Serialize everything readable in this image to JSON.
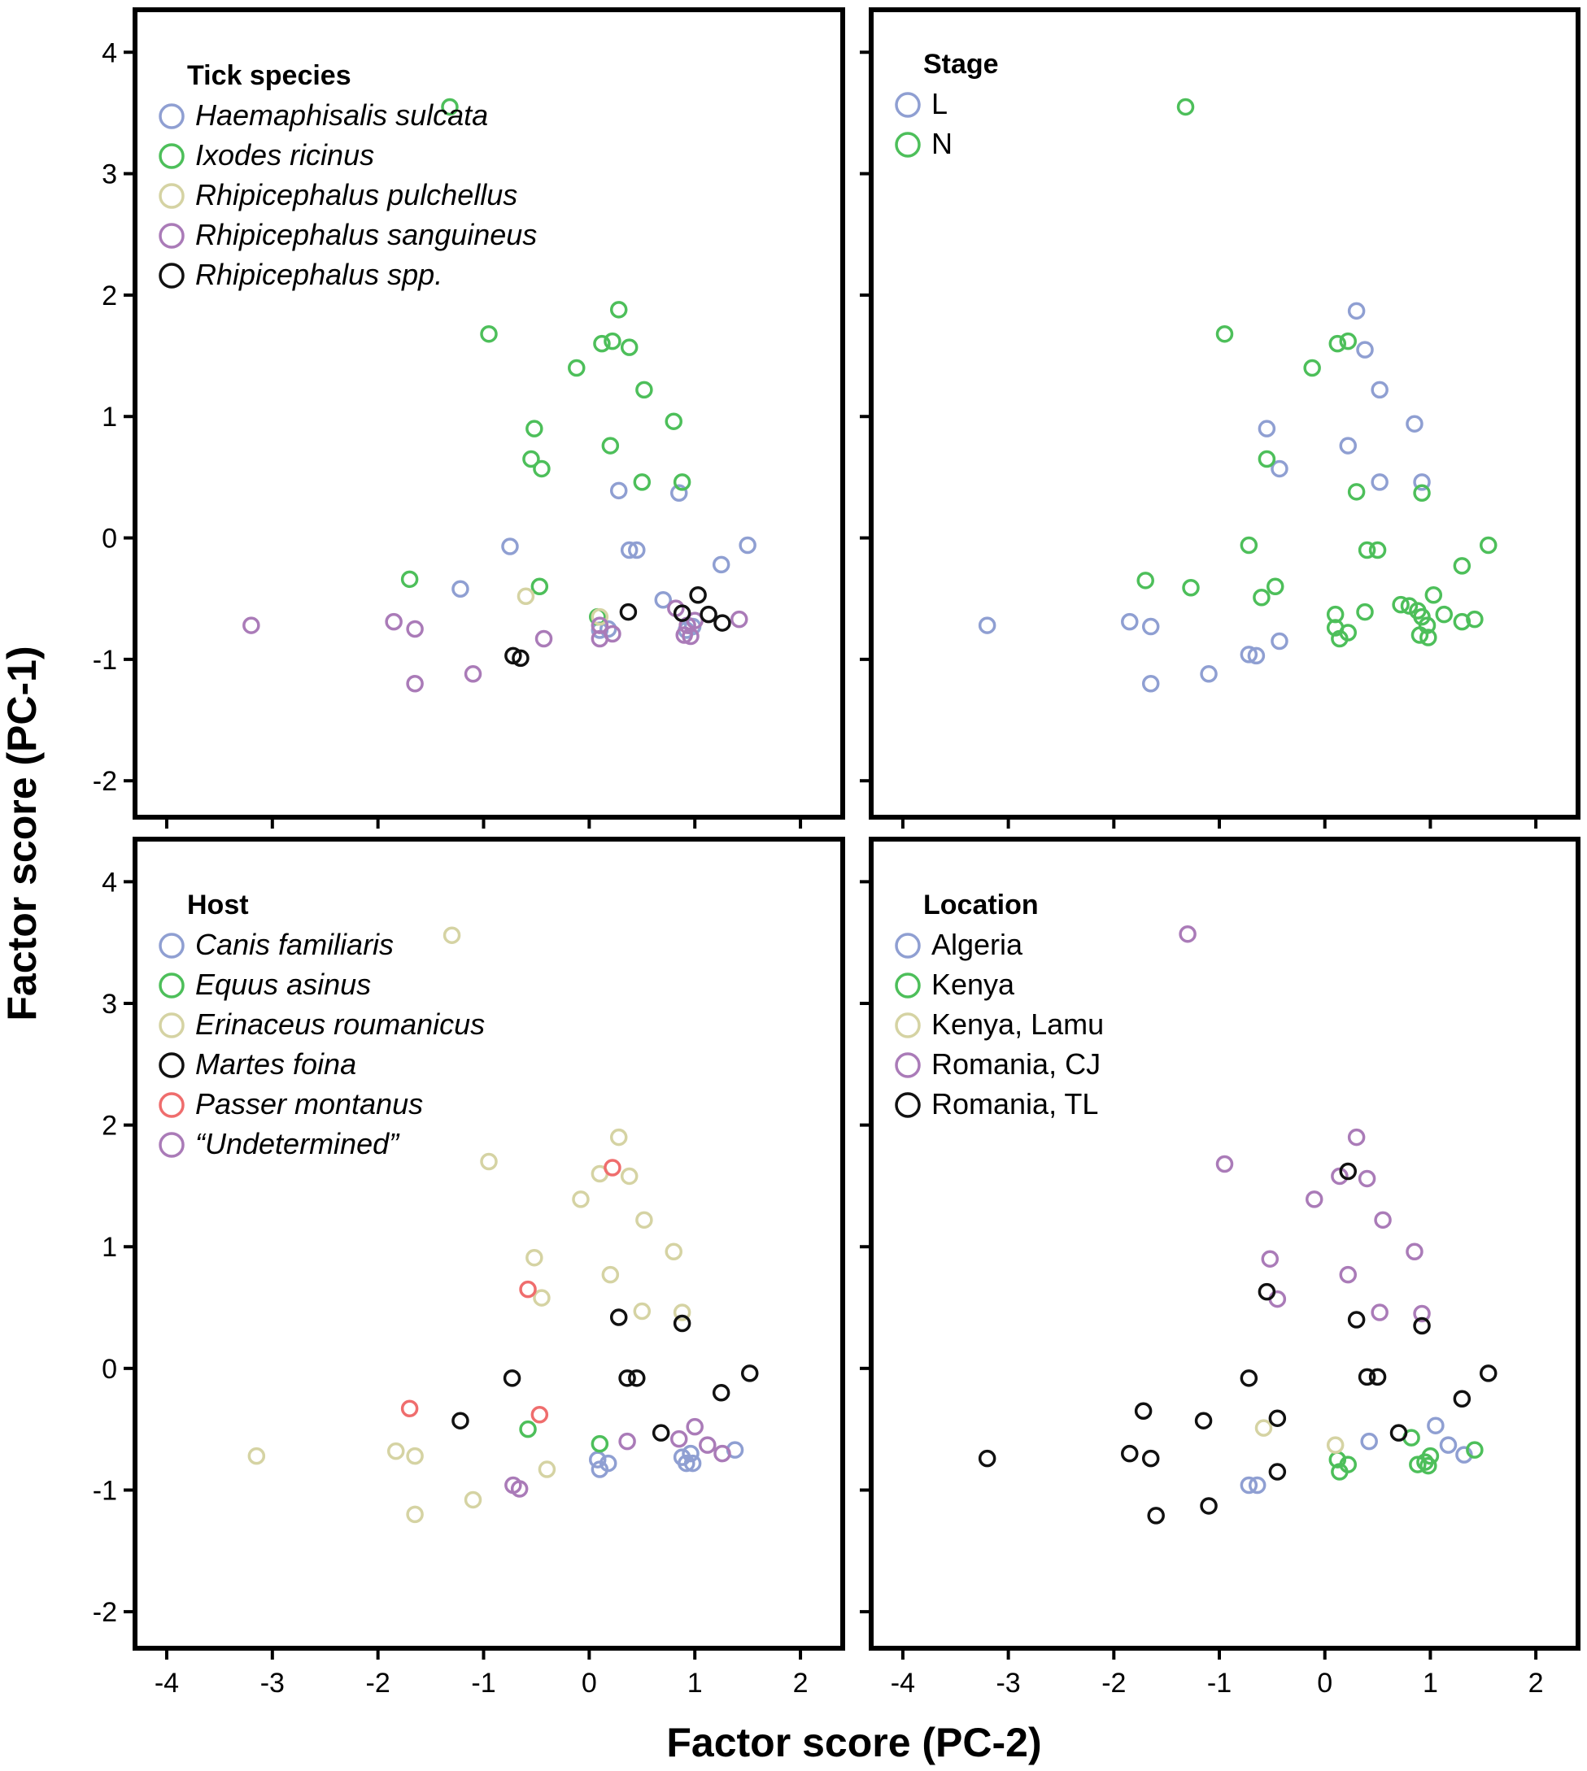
{
  "figure": {
    "xlabel": "Factor score (PC-2)",
    "ylabel": "Factor score (PC-1)"
  },
  "colors": {
    "blue": "#8f9fd2",
    "green": "#4dbf5a",
    "beige": "#d5d3a3",
    "purple": "#aa7bb8",
    "black": "#111111",
    "red": "#ef6d6d"
  },
  "chart_data": [
    {
      "type": "scatter",
      "id": "tick",
      "title": "Tick species",
      "xlim": [
        -4.3,
        2.4
      ],
      "ylim": [
        -2.3,
        4.35
      ],
      "xticks": [
        -4,
        -3,
        -2,
        -1,
        0,
        1,
        2
      ],
      "yticks": [
        4,
        3,
        2,
        1,
        0,
        -1,
        -2
      ],
      "legend_position": "top-left",
      "series": [
        {
          "name": "Haemaphisalis sulcata",
          "color": "blue",
          "italic": true,
          "points": [
            [
              -0.75,
              -0.07
            ],
            [
              -1.22,
              -0.42
            ],
            [
              0.28,
              0.39
            ],
            [
              0.38,
              -0.1
            ],
            [
              0.45,
              -0.1
            ],
            [
              0.85,
              0.37
            ],
            [
              1.25,
              -0.22
            ],
            [
              1.5,
              -0.06
            ],
            [
              0.7,
              -0.51
            ],
            [
              0.1,
              -0.76
            ],
            [
              0.18,
              -0.75
            ],
            [
              0.92,
              -0.76
            ],
            [
              0.98,
              -0.73
            ]
          ]
        },
        {
          "name": "Ixodes ricinus",
          "color": "green",
          "italic": true,
          "points": [
            [
              -1.32,
              3.55
            ],
            [
              -0.95,
              1.68
            ],
            [
              -0.12,
              1.4
            ],
            [
              0.12,
              1.6
            ],
            [
              0.22,
              1.62
            ],
            [
              0.28,
              1.88
            ],
            [
              0.38,
              1.57
            ],
            [
              0.52,
              1.22
            ],
            [
              0.8,
              0.96
            ],
            [
              -0.52,
              0.9
            ],
            [
              -0.55,
              0.65
            ],
            [
              -0.45,
              0.57
            ],
            [
              0.2,
              0.76
            ],
            [
              0.5,
              0.46
            ],
            [
              0.88,
              0.46
            ],
            [
              -1.7,
              -0.34
            ],
            [
              -0.47,
              -0.4
            ],
            [
              0.08,
              -0.65
            ]
          ]
        },
        {
          "name": "Rhipicephalus pulchellus",
          "color": "beige",
          "italic": true,
          "points": [
            [
              -0.6,
              -0.48
            ],
            [
              0.1,
              -0.65
            ]
          ]
        },
        {
          "name": "Rhipicephalus sanguineus",
          "color": "purple",
          "italic": true,
          "points": [
            [
              -3.2,
              -0.72
            ],
            [
              -1.85,
              -0.69
            ],
            [
              -1.65,
              -0.75
            ],
            [
              -1.65,
              -1.2
            ],
            [
              -1.1,
              -1.12
            ],
            [
              -0.43,
              -0.83
            ],
            [
              0.1,
              -0.72
            ],
            [
              0.1,
              -0.83
            ],
            [
              0.22,
              -0.79
            ],
            [
              0.82,
              -0.58
            ],
            [
              0.9,
              -0.8
            ],
            [
              0.96,
              -0.81
            ],
            [
              0.93,
              -0.72
            ],
            [
              1.0,
              -0.68
            ],
            [
              1.42,
              -0.67
            ]
          ]
        },
        {
          "name": "Rhipicephalus spp.",
          "color": "black",
          "italic": true,
          "points": [
            [
              -0.72,
              -0.97
            ],
            [
              -0.65,
              -0.99
            ],
            [
              0.37,
              -0.61
            ],
            [
              0.88,
              -0.62
            ],
            [
              1.03,
              -0.47
            ],
            [
              1.13,
              -0.63
            ],
            [
              1.26,
              -0.7
            ]
          ]
        }
      ]
    },
    {
      "type": "scatter",
      "id": "stage",
      "title": "Stage",
      "xlim": [
        -4.3,
        2.4
      ],
      "ylim": [
        -2.3,
        4.35
      ],
      "xticks": [
        -4,
        -3,
        -2,
        -1,
        0,
        1,
        2
      ],
      "yticks": [
        4,
        3,
        2,
        1,
        0,
        -1,
        -2
      ],
      "legend_position": "top-left",
      "series": [
        {
          "name": "L",
          "color": "blue",
          "italic": false,
          "points": [
            [
              -3.2,
              -0.72
            ],
            [
              -1.85,
              -0.69
            ],
            [
              -1.65,
              -0.73
            ],
            [
              -1.65,
              -1.2
            ],
            [
              -1.1,
              -1.12
            ],
            [
              -0.72,
              -0.96
            ],
            [
              -0.65,
              -0.97
            ],
            [
              -0.43,
              -0.85
            ],
            [
              -0.55,
              0.9
            ],
            [
              -0.43,
              0.57
            ],
            [
              0.3,
              1.87
            ],
            [
              0.38,
              1.55
            ],
            [
              0.52,
              1.22
            ],
            [
              0.22,
              0.76
            ],
            [
              0.52,
              0.46
            ],
            [
              0.85,
              0.94
            ],
            [
              0.92,
              0.46
            ]
          ]
        },
        {
          "name": "N",
          "color": "green",
          "italic": false,
          "points": [
            [
              -1.32,
              3.55
            ],
            [
              -0.95,
              1.68
            ],
            [
              -0.12,
              1.4
            ],
            [
              0.12,
              1.6
            ],
            [
              0.22,
              1.62
            ],
            [
              -0.55,
              0.65
            ],
            [
              0.3,
              0.38
            ],
            [
              0.92,
              0.37
            ],
            [
              -0.72,
              -0.06
            ],
            [
              -1.7,
              -0.35
            ],
            [
              -1.27,
              -0.41
            ],
            [
              -0.47,
              -0.4
            ],
            [
              -0.6,
              -0.49
            ],
            [
              0.4,
              -0.1
            ],
            [
              0.5,
              -0.1
            ],
            [
              0.1,
              -0.63
            ],
            [
              0.1,
              -0.74
            ],
            [
              0.14,
              -0.83
            ],
            [
              0.22,
              -0.78
            ],
            [
              0.38,
              -0.61
            ],
            [
              0.72,
              -0.55
            ],
            [
              0.8,
              -0.56
            ],
            [
              0.88,
              -0.6
            ],
            [
              0.92,
              -0.65
            ],
            [
              0.97,
              -0.72
            ],
            [
              1.03,
              -0.47
            ],
            [
              1.13,
              -0.63
            ],
            [
              0.9,
              -0.8
            ],
            [
              0.98,
              -0.82
            ],
            [
              1.3,
              -0.69
            ],
            [
              1.42,
              -0.67
            ],
            [
              1.3,
              -0.23
            ],
            [
              1.55,
              -0.06
            ]
          ]
        }
      ]
    },
    {
      "type": "scatter",
      "id": "host",
      "title": "Host",
      "xlim": [
        -4.3,
        2.4
      ],
      "ylim": [
        -2.3,
        4.35
      ],
      "xticks": [
        -4,
        -3,
        -2,
        -1,
        0,
        1,
        2
      ],
      "yticks": [
        4,
        3,
        2,
        1,
        0,
        -1,
        -2
      ],
      "legend_position": "top-left",
      "series": [
        {
          "name": "Canis familiaris",
          "color": "blue",
          "italic": true,
          "points": [
            [
              0.08,
              -0.75
            ],
            [
              0.1,
              -0.83
            ],
            [
              0.18,
              -0.78
            ],
            [
              0.88,
              -0.73
            ],
            [
              0.92,
              -0.78
            ],
            [
              0.98,
              -0.78
            ],
            [
              0.96,
              -0.7
            ],
            [
              1.38,
              -0.67
            ]
          ]
        },
        {
          "name": "Equus asinus",
          "color": "green",
          "italic": true,
          "points": [
            [
              -0.58,
              -0.5
            ],
            [
              0.1,
              -0.62
            ]
          ]
        },
        {
          "name": "Erinaceus roumanicus",
          "color": "beige",
          "italic": true,
          "points": [
            [
              -1.3,
              3.56
            ],
            [
              -0.95,
              1.7
            ],
            [
              -0.08,
              1.39
            ],
            [
              0.1,
              1.6
            ],
            [
              0.28,
              1.9
            ],
            [
              0.38,
              1.58
            ],
            [
              0.52,
              1.22
            ],
            [
              -0.52,
              0.91
            ],
            [
              -0.45,
              0.58
            ],
            [
              0.2,
              0.77
            ],
            [
              0.8,
              0.96
            ],
            [
              0.5,
              0.47
            ],
            [
              0.88,
              0.46
            ],
            [
              -3.15,
              -0.72
            ],
            [
              -1.83,
              -0.68
            ],
            [
              -1.65,
              -0.72
            ],
            [
              -1.65,
              -1.2
            ],
            [
              -1.1,
              -1.08
            ],
            [
              -0.4,
              -0.83
            ]
          ]
        },
        {
          "name": "Martes foina",
          "color": "black",
          "italic": true,
          "points": [
            [
              -1.22,
              -0.43
            ],
            [
              -0.73,
              -0.08
            ],
            [
              0.28,
              0.42
            ],
            [
              0.36,
              -0.08
            ],
            [
              0.45,
              -0.08
            ],
            [
              0.88,
              0.37
            ],
            [
              1.25,
              -0.2
            ],
            [
              1.52,
              -0.04
            ],
            [
              0.68,
              -0.53
            ]
          ]
        },
        {
          "name": "Passer montanus",
          "color": "red",
          "italic": true,
          "points": [
            [
              0.22,
              1.65
            ],
            [
              -0.58,
              0.65
            ],
            [
              -1.7,
              -0.33
            ],
            [
              -0.47,
              -0.38
            ]
          ]
        },
        {
          "name": "“Undetermined”",
          "color": "purple",
          "italic": true,
          "points": [
            [
              -0.72,
              -0.96
            ],
            [
              -0.66,
              -0.99
            ],
            [
              0.36,
              -0.6
            ],
            [
              0.85,
              -0.58
            ],
            [
              1.0,
              -0.48
            ],
            [
              1.12,
              -0.63
            ],
            [
              1.26,
              -0.7
            ]
          ]
        }
      ]
    },
    {
      "type": "scatter",
      "id": "location",
      "title": "Location",
      "xlim": [
        -4.3,
        2.4
      ],
      "ylim": [
        -2.3,
        4.35
      ],
      "xticks": [
        -4,
        -3,
        -2,
        -1,
        0,
        1,
        2
      ],
      "yticks": [
        4,
        3,
        2,
        1,
        0,
        -1,
        -2
      ],
      "legend_position": "top-left",
      "series": [
        {
          "name": "Algeria",
          "color": "blue",
          "italic": false,
          "points": [
            [
              -0.72,
              -0.96
            ],
            [
              -0.64,
              -0.96
            ],
            [
              0.42,
              -0.6
            ],
            [
              1.05,
              -0.47
            ],
            [
              1.17,
              -0.63
            ],
            [
              1.32,
              -0.71
            ]
          ]
        },
        {
          "name": "Kenya",
          "color": "green",
          "italic": false,
          "points": [
            [
              0.12,
              -0.75
            ],
            [
              0.14,
              -0.85
            ],
            [
              0.22,
              -0.79
            ],
            [
              0.82,
              -0.57
            ],
            [
              0.88,
              -0.79
            ],
            [
              0.95,
              -0.77
            ],
            [
              0.98,
              -0.8
            ],
            [
              1.0,
              -0.72
            ],
            [
              1.42,
              -0.67
            ]
          ]
        },
        {
          "name": "Kenya, Lamu",
          "color": "beige",
          "italic": false,
          "points": [
            [
              -0.58,
              -0.49
            ],
            [
              0.1,
              -0.63
            ]
          ]
        },
        {
          "name": "Romania, CJ",
          "color": "purple",
          "italic": false,
          "points": [
            [
              -1.3,
              3.57
            ],
            [
              -0.95,
              1.68
            ],
            [
              -0.1,
              1.39
            ],
            [
              0.14,
              1.58
            ],
            [
              0.3,
              1.9
            ],
            [
              0.4,
              1.56
            ],
            [
              0.55,
              1.22
            ],
            [
              -0.52,
              0.9
            ],
            [
              -0.45,
              0.57
            ],
            [
              0.22,
              0.77
            ],
            [
              0.85,
              0.96
            ],
            [
              0.52,
              0.46
            ],
            [
              0.92,
              0.45
            ]
          ]
        },
        {
          "name": "Romania, TL",
          "color": "black",
          "italic": false,
          "points": [
            [
              0.22,
              1.62
            ],
            [
              -0.55,
              0.63
            ],
            [
              0.3,
              0.4
            ],
            [
              0.92,
              0.35
            ],
            [
              -0.72,
              -0.08
            ],
            [
              0.4,
              -0.07
            ],
            [
              0.5,
              -0.07
            ],
            [
              1.3,
              -0.25
            ],
            [
              1.55,
              -0.04
            ],
            [
              -1.72,
              -0.35
            ],
            [
              -1.15,
              -0.43
            ],
            [
              -0.45,
              -0.41
            ],
            [
              0.7,
              -0.53
            ],
            [
              -3.2,
              -0.74
            ],
            [
              -1.85,
              -0.7
            ],
            [
              -1.65,
              -0.74
            ],
            [
              -1.6,
              -1.21
            ],
            [
              -1.1,
              -1.13
            ],
            [
              -0.45,
              -0.85
            ]
          ]
        }
      ]
    }
  ]
}
